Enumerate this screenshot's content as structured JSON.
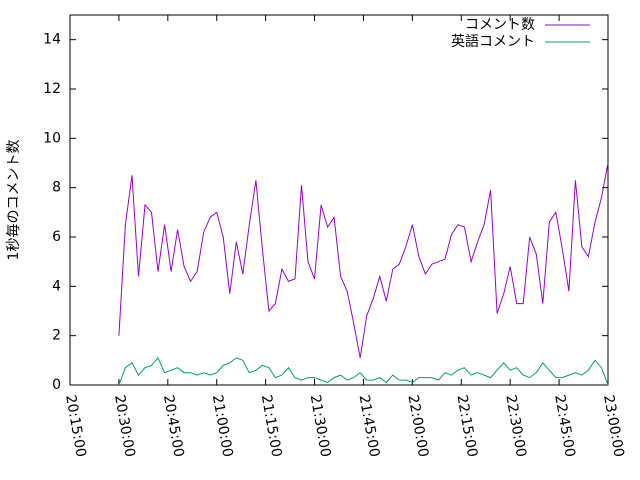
{
  "chart_data": {
    "type": "line",
    "ylabel": "1秒毎のコメント数",
    "x": [
      "20:30:00",
      "20:32:00",
      "20:34:00",
      "20:36:00",
      "20:38:00",
      "20:40:00",
      "20:42:00",
      "20:44:00",
      "20:46:00",
      "20:48:00",
      "20:50:00",
      "20:52:00",
      "20:54:00",
      "20:56:00",
      "20:58:00",
      "21:00:00",
      "21:02:00",
      "21:04:00",
      "21:06:00",
      "21:08:00",
      "21:10:00",
      "21:12:00",
      "21:14:00",
      "21:16:00",
      "21:18:00",
      "21:20:00",
      "21:22:00",
      "21:24:00",
      "21:26:00",
      "21:28:00",
      "21:30:00",
      "21:32:00",
      "21:34:00",
      "21:36:00",
      "21:38:00",
      "21:40:00",
      "21:42:00",
      "21:44:00",
      "21:46:00",
      "21:48:00",
      "21:50:00",
      "21:52:00",
      "21:54:00",
      "21:56:00",
      "21:58:00",
      "22:00:00",
      "22:02:00",
      "22:04:00",
      "22:06:00",
      "22:08:00",
      "22:10:00",
      "22:12:00",
      "22:14:00",
      "22:16:00",
      "22:18:00",
      "22:20:00",
      "22:22:00",
      "22:24:00",
      "22:26:00",
      "22:28:00",
      "22:30:00",
      "22:32:00",
      "22:34:00",
      "22:36:00",
      "22:38:00",
      "22:40:00",
      "22:42:00",
      "22:44:00",
      "22:46:00",
      "22:48:00",
      "22:50:00",
      "22:52:00",
      "22:54:00",
      "22:56:00",
      "22:58:00",
      "23:00:00"
    ],
    "series": [
      {
        "name": "コメント数",
        "color": "#9400d3",
        "values": [
          2.0,
          6.5,
          8.5,
          4.4,
          7.3,
          7.0,
          4.6,
          6.5,
          4.6,
          6.3,
          4.8,
          4.2,
          4.6,
          6.2,
          6.8,
          7.0,
          6.0,
          3.7,
          5.8,
          4.5,
          6.5,
          8.3,
          5.5,
          3.0,
          3.3,
          4.7,
          4.2,
          4.3,
          8.1,
          5.0,
          4.3,
          7.3,
          6.4,
          6.8,
          4.4,
          3.8,
          2.5,
          1.1,
          2.8,
          3.5,
          4.4,
          3.4,
          4.7,
          4.9,
          5.6,
          6.5,
          5.2,
          4.5,
          4.9,
          5.0,
          5.1,
          6.1,
          6.5,
          6.4,
          5.0,
          5.8,
          6.5,
          7.9,
          2.9,
          3.7,
          4.8,
          3.3,
          3.3,
          6.0,
          5.3,
          3.3,
          6.6,
          7.0,
          5.5,
          3.8,
          8.3,
          5.6,
          5.2,
          6.6,
          7.6,
          9.0
        ]
      },
      {
        "name": "英語コメント",
        "color": "#009e73",
        "values": [
          0,
          0.7,
          0.9,
          0.4,
          0.7,
          0.8,
          1.1,
          0.5,
          0.6,
          0.7,
          0.5,
          0.5,
          0.4,
          0.5,
          0.4,
          0.5,
          0.8,
          0.9,
          1.1,
          1.0,
          0.5,
          0.6,
          0.8,
          0.7,
          0.3,
          0.4,
          0.7,
          0.3,
          0.2,
          0.3,
          0.3,
          0.2,
          0.1,
          0.3,
          0.4,
          0.2,
          0.3,
          0.5,
          0.2,
          0.2,
          0.3,
          0.1,
          0.4,
          0.2,
          0.2,
          0.1,
          0.3,
          0.3,
          0.3,
          0.2,
          0.5,
          0.4,
          0.6,
          0.7,
          0.4,
          0.5,
          0.4,
          0.3,
          0.6,
          0.9,
          0.6,
          0.7,
          0.4,
          0.3,
          0.5,
          0.9,
          0.6,
          0.3,
          0.3,
          0.4,
          0.5,
          0.4,
          0.6,
          1.0,
          0.7,
          0
        ]
      }
    ],
    "xlim": [
      "20:15:00",
      "23:00:00"
    ],
    "xticks": [
      "20:15:00",
      "20:30:00",
      "20:45:00",
      "21:00:00",
      "21:15:00",
      "21:30:00",
      "21:45:00",
      "22:00:00",
      "22:15:00",
      "22:30:00",
      "22:45:00",
      "23:00:00"
    ],
    "ylim": [
      0,
      15
    ],
    "yticks": [
      0,
      2,
      4,
      6,
      8,
      10,
      12,
      14
    ],
    "grid": false,
    "legend": "top-right"
  }
}
